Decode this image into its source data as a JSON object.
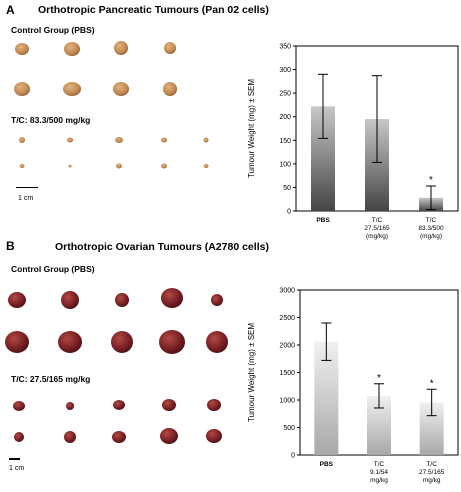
{
  "panel_a": {
    "letter": "A",
    "title": "Orthotropic  Pancreatic Tumours  (Pan 02 cells)",
    "control_label": "Control Group (PBS)",
    "treatment_label": "T/C: 83.3/500 mg/kg",
    "scale_label": "1 cm"
  },
  "panel_b": {
    "letter": "B",
    "title": "Orthotropic  Ovarian Tumours  (A2780 cells)",
    "control_label": "Control Group (PBS)",
    "treatment_label": "T/C:  27.5/165 mg/kg",
    "scale_label": "1 cm"
  },
  "colors": {
    "tumour_a": "#c9955a",
    "tumour_b": "#7a1e22",
    "bar_dark": "#555555",
    "bar_light": "#d8d8d8"
  },
  "chart_data": [
    {
      "type": "bar",
      "categories": [
        [
          "PBS"
        ],
        [
          "T/C",
          "27.5/165",
          "(mg/kg)"
        ],
        [
          "T/C",
          "83.3/500",
          "(mg/kg)"
        ]
      ],
      "values": [
        222,
        195,
        28
      ],
      "errors": [
        68,
        92,
        25
      ],
      "significant": [
        false,
        false,
        true
      ],
      "marker": "*",
      "ylabel": "Tumour Weight (mg) ± SEM",
      "ylim": [
        0,
        350
      ],
      "yticks": [
        0,
        50,
        100,
        150,
        200,
        250,
        300,
        350
      ],
      "bar_style": "dark-gradient"
    },
    {
      "type": "bar",
      "categories": [
        [
          "PBS"
        ],
        [
          "T/C",
          "9.1/54",
          "mg/kg"
        ],
        [
          "T/C",
          "27.5/165",
          "mg/kg"
        ]
      ],
      "values": [
        2060,
        1075,
        955
      ],
      "errors": [
        340,
        220,
        240
      ],
      "significant": [
        false,
        true,
        true
      ],
      "marker": "*",
      "ylabel": "Tumour Weight (mg) ± SEM",
      "ylim": [
        0,
        3000
      ],
      "yticks": [
        0,
        500,
        1000,
        1500,
        2000,
        2500,
        3000
      ],
      "bar_style": "light-gradient"
    }
  ]
}
